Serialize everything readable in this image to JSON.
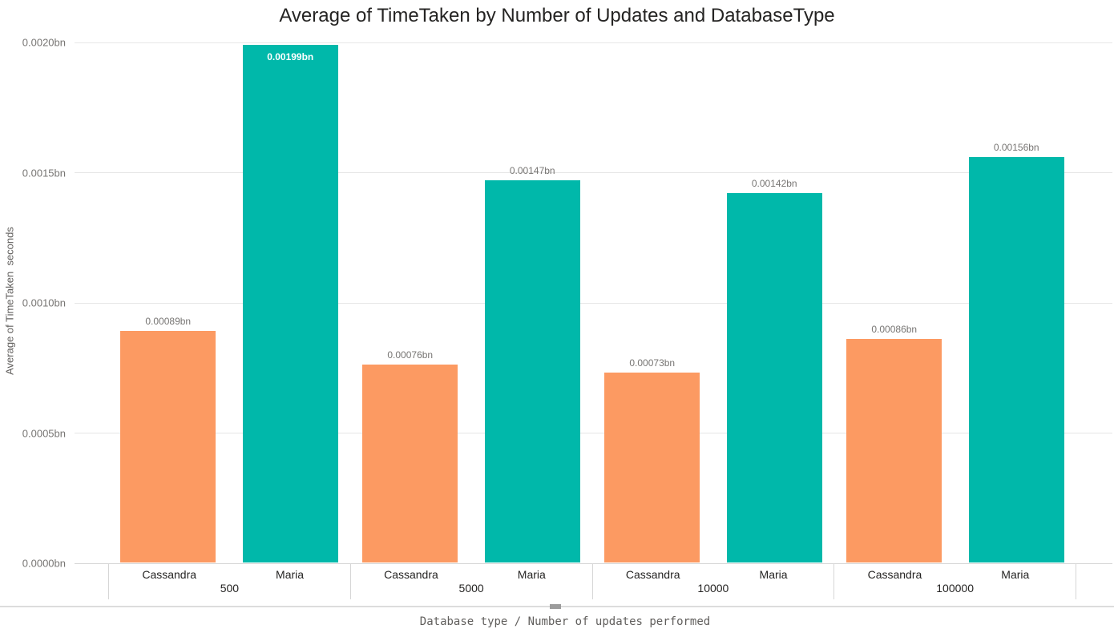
{
  "title": "Average of TimeTaken by Number of Updates and DatabaseType",
  "chart_data": {
    "type": "bar",
    "title": "Average of TimeTaken by Number of Updates and DatabaseType",
    "xlabel": "Database type / Number of updates performed",
    "ylabel": "Average of TimeTaken  seconds",
    "ylim": [
      0,
      0.002
    ],
    "grid": true,
    "legend_position": "none",
    "categories": [
      "500",
      "5000",
      "10000",
      "100000"
    ],
    "series": [
      {
        "name": "Cassandra",
        "color": "#FC9A62",
        "values": [
          0.00089,
          0.00076,
          0.00073,
          0.00086
        ]
      },
      {
        "name": "Maria",
        "color": "#00B8AA",
        "values": [
          0.00199,
          0.00147,
          0.00142,
          0.00156
        ]
      }
    ],
    "data_labels": [
      [
        "0.00089bn",
        "0.00076bn",
        "0.00073bn",
        "0.00086bn"
      ],
      [
        "0.00199bn",
        "0.00147bn",
        "0.00142bn",
        "0.00156bn"
      ]
    ],
    "y_ticks": [
      {
        "label": "0.0020bn",
        "value": 0.002
      },
      {
        "label": "0.0015bn",
        "value": 0.0015
      },
      {
        "label": "0.0010bn",
        "value": 0.001
      },
      {
        "label": "0.0005bn",
        "value": 0.0005
      },
      {
        "label": "0.0000bn",
        "value": 0.0
      }
    ]
  },
  "colors": {
    "grid": "#E6E6E6",
    "axis_line": "#D6D6D6",
    "tick_text": "#777573",
    "category_text": "#252423",
    "axis_title_text": "#605E5C",
    "inside_label_text": "#FFFFFF"
  }
}
